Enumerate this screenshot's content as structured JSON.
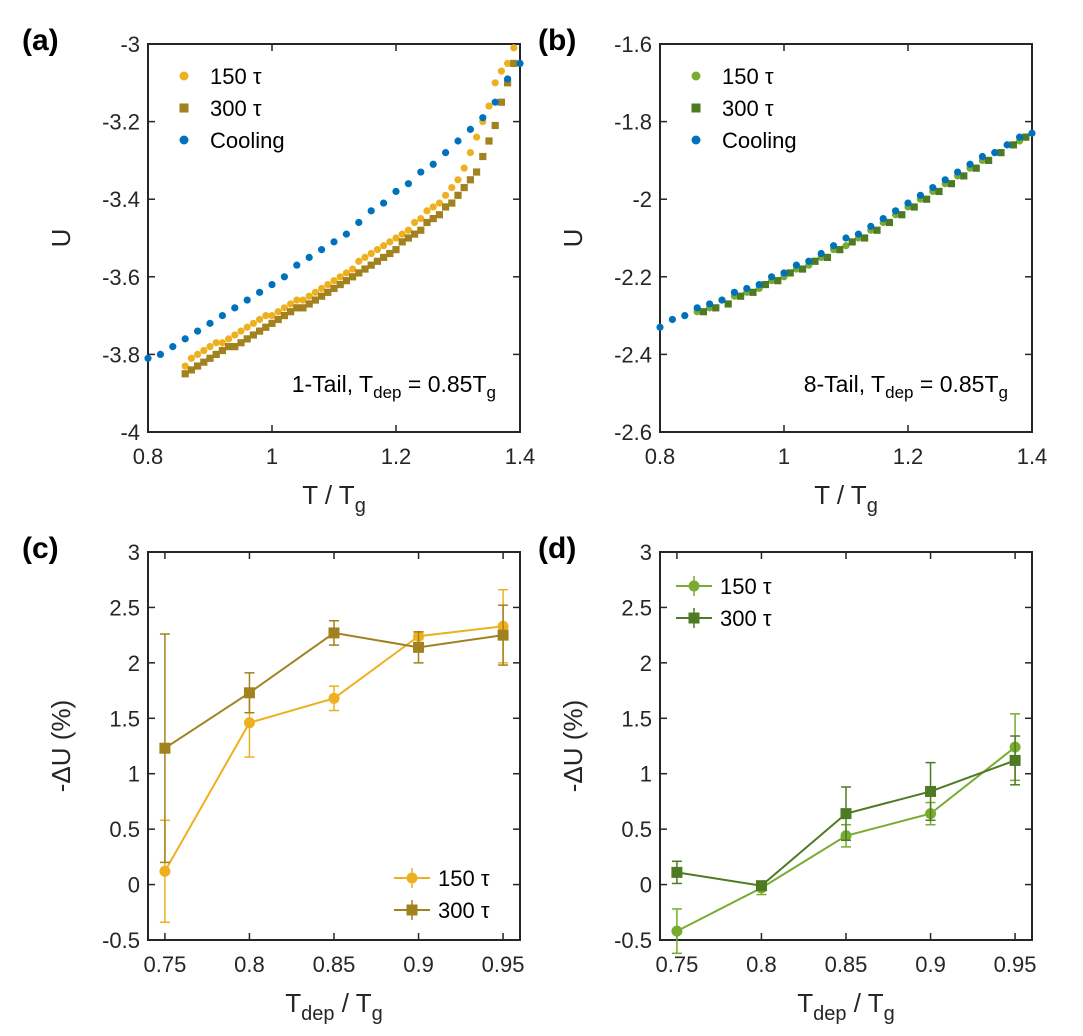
{
  "colors": {
    "gold": "#EDB120",
    "brown": "#A2811F",
    "blue": "#0072BD",
    "green_light": "#77AC30",
    "green_dark": "#4F7A24"
  },
  "chart_data": [
    {
      "panel": "(a)",
      "type": "scatter",
      "xlabel_main": "T / T",
      "xlabel_sub": "g",
      "ylabel": "U",
      "xlim": [
        0.8,
        1.4
      ],
      "ylim": [
        -4,
        -3
      ],
      "xticks": [
        "0.8",
        "1",
        "1.2",
        "1.4"
      ],
      "xtick_values": [
        0.8,
        1.0,
        1.2,
        1.4
      ],
      "yticks": [
        "-4",
        "-3.8",
        "-3.6",
        "-3.4",
        "-3.2",
        "-3"
      ],
      "ytick_values": [
        -4,
        -3.8,
        -3.6,
        -3.4,
        -3.2,
        -3
      ],
      "annotation": {
        "pre": "1-Tail, T",
        "sub1": "dep",
        "mid": " = 0.85T",
        "sub2": "g"
      },
      "legend": [
        "150 τ",
        "300 τ",
        "Cooling"
      ],
      "series": [
        {
          "name": "150 τ",
          "marker": "circle",
          "color": "#EDB120",
          "x": [
            0.86,
            0.87,
            0.88,
            0.89,
            0.9,
            0.91,
            0.92,
            0.93,
            0.94,
            0.95,
            0.96,
            0.97,
            0.98,
            0.99,
            1.0,
            1.01,
            1.02,
            1.03,
            1.04,
            1.05,
            1.06,
            1.07,
            1.08,
            1.09,
            1.1,
            1.11,
            1.12,
            1.13,
            1.14,
            1.15,
            1.16,
            1.17,
            1.18,
            1.19,
            1.2,
            1.21,
            1.22,
            1.23,
            1.24,
            1.25,
            1.26,
            1.27,
            1.28,
            1.29,
            1.3,
            1.31,
            1.32,
            1.33,
            1.34,
            1.35,
            1.36,
            1.37,
            1.38,
            1.39
          ],
          "y": [
            -3.83,
            -3.81,
            -3.8,
            -3.79,
            -3.78,
            -3.77,
            -3.77,
            -3.76,
            -3.75,
            -3.74,
            -3.73,
            -3.72,
            -3.71,
            -3.7,
            -3.7,
            -3.69,
            -3.68,
            -3.67,
            -3.66,
            -3.66,
            -3.65,
            -3.64,
            -3.63,
            -3.62,
            -3.61,
            -3.6,
            -3.59,
            -3.58,
            -3.56,
            -3.55,
            -3.54,
            -3.53,
            -3.52,
            -3.51,
            -3.5,
            -3.49,
            -3.48,
            -3.46,
            -3.45,
            -3.43,
            -3.42,
            -3.41,
            -3.39,
            -3.37,
            -3.35,
            -3.32,
            -3.28,
            -3.24,
            -3.2,
            -3.16,
            -3.1,
            -3.07,
            -3.05,
            -3.01
          ]
        },
        {
          "name": "300 τ",
          "marker": "square",
          "color": "#A2811F",
          "x": [
            0.86,
            0.87,
            0.88,
            0.89,
            0.9,
            0.91,
            0.92,
            0.93,
            0.94,
            0.95,
            0.96,
            0.97,
            0.98,
            0.99,
            1.0,
            1.01,
            1.02,
            1.03,
            1.04,
            1.05,
            1.06,
            1.07,
            1.08,
            1.09,
            1.1,
            1.11,
            1.12,
            1.13,
            1.14,
            1.15,
            1.16,
            1.17,
            1.18,
            1.19,
            1.2,
            1.21,
            1.22,
            1.23,
            1.24,
            1.25,
            1.26,
            1.27,
            1.28,
            1.29,
            1.3,
            1.31,
            1.32,
            1.33,
            1.34,
            1.35,
            1.36,
            1.37,
            1.38,
            1.39
          ],
          "y": [
            -3.85,
            -3.84,
            -3.83,
            -3.82,
            -3.81,
            -3.8,
            -3.79,
            -3.78,
            -3.78,
            -3.77,
            -3.76,
            -3.75,
            -3.74,
            -3.73,
            -3.72,
            -3.71,
            -3.7,
            -3.69,
            -3.68,
            -3.68,
            -3.67,
            -3.66,
            -3.65,
            -3.64,
            -3.63,
            -3.62,
            -3.61,
            -3.6,
            -3.59,
            -3.58,
            -3.57,
            -3.56,
            -3.55,
            -3.54,
            -3.53,
            -3.51,
            -3.5,
            -3.49,
            -3.48,
            -3.46,
            -3.45,
            -3.44,
            -3.42,
            -3.41,
            -3.39,
            -3.37,
            -3.35,
            -3.33,
            -3.29,
            -3.25,
            -3.21,
            -3.15,
            -3.1,
            -3.05
          ]
        },
        {
          "name": "Cooling",
          "marker": "circle",
          "color": "#0072BD",
          "x": [
            0.8,
            0.82,
            0.84,
            0.86,
            0.88,
            0.9,
            0.92,
            0.94,
            0.96,
            0.98,
            1.0,
            1.02,
            1.04,
            1.06,
            1.08,
            1.1,
            1.12,
            1.14,
            1.16,
            1.18,
            1.2,
            1.22,
            1.24,
            1.26,
            1.28,
            1.3,
            1.32,
            1.34,
            1.36,
            1.38,
            1.4
          ],
          "y": [
            -3.81,
            -3.8,
            -3.78,
            -3.76,
            -3.74,
            -3.72,
            -3.7,
            -3.68,
            -3.66,
            -3.64,
            -3.62,
            -3.6,
            -3.57,
            -3.55,
            -3.53,
            -3.51,
            -3.49,
            -3.46,
            -3.43,
            -3.41,
            -3.38,
            -3.36,
            -3.33,
            -3.31,
            -3.28,
            -3.25,
            -3.22,
            -3.19,
            -3.15,
            -3.09,
            -3.05
          ]
        }
      ]
    },
    {
      "panel": "(b)",
      "type": "scatter",
      "xlabel_main": "T / T",
      "xlabel_sub": "g",
      "ylabel": "U",
      "xlim": [
        0.8,
        1.4
      ],
      "ylim": [
        -2.6,
        -1.6
      ],
      "xticks": [
        "0.8",
        "1",
        "1.2",
        "1.4"
      ],
      "xtick_values": [
        0.8,
        1.0,
        1.2,
        1.4
      ],
      "yticks": [
        "-2.6",
        "-2.4",
        "-2.2",
        "-2",
        "-1.8",
        "-1.6"
      ],
      "ytick_values": [
        -2.6,
        -2.4,
        -2.2,
        -2.0,
        -1.8,
        -1.6
      ],
      "annotation": {
        "pre": "8-Tail, T",
        "sub1": "dep",
        "mid": " = 0.85T",
        "sub2": "g"
      },
      "legend": [
        "150 τ",
        "300 τ",
        "Cooling"
      ],
      "series": [
        {
          "name": "150 τ",
          "marker": "circle",
          "color": "#77AC30",
          "x": [
            0.86,
            0.88,
            0.9,
            0.92,
            0.94,
            0.96,
            0.98,
            1.0,
            1.02,
            1.04,
            1.06,
            1.08,
            1.1,
            1.12,
            1.14,
            1.16,
            1.18,
            1.2,
            1.22,
            1.24,
            1.26,
            1.28,
            1.3,
            1.32,
            1.34,
            1.36,
            1.38,
            1.39
          ],
          "y": [
            -2.29,
            -2.28,
            -2.26,
            -2.25,
            -2.24,
            -2.23,
            -2.21,
            -2.2,
            -2.18,
            -2.17,
            -2.15,
            -2.13,
            -2.12,
            -2.1,
            -2.08,
            -2.06,
            -2.04,
            -2.02,
            -2.0,
            -1.98,
            -1.96,
            -1.94,
            -1.92,
            -1.9,
            -1.88,
            -1.86,
            -1.85,
            -1.84
          ]
        },
        {
          "name": "300 τ",
          "marker": "square",
          "color": "#4F7A24",
          "x": [
            0.87,
            0.89,
            0.91,
            0.93,
            0.95,
            0.97,
            0.99,
            1.01,
            1.03,
            1.05,
            1.07,
            1.09,
            1.11,
            1.13,
            1.15,
            1.17,
            1.19,
            1.21,
            1.23,
            1.25,
            1.27,
            1.29,
            1.31,
            1.33,
            1.35,
            1.37,
            1.39
          ],
          "y": [
            -2.29,
            -2.28,
            -2.27,
            -2.25,
            -2.24,
            -2.22,
            -2.21,
            -2.19,
            -2.18,
            -2.16,
            -2.15,
            -2.13,
            -2.11,
            -2.1,
            -2.08,
            -2.06,
            -2.04,
            -2.02,
            -2.0,
            -1.98,
            -1.96,
            -1.94,
            -1.92,
            -1.9,
            -1.88,
            -1.86,
            -1.84
          ]
        },
        {
          "name": "Cooling",
          "marker": "circle",
          "color": "#0072BD",
          "x": [
            0.8,
            0.82,
            0.84,
            0.86,
            0.88,
            0.9,
            0.92,
            0.94,
            0.96,
            0.98,
            1.0,
            1.02,
            1.04,
            1.06,
            1.08,
            1.1,
            1.12,
            1.14,
            1.16,
            1.18,
            1.2,
            1.22,
            1.24,
            1.26,
            1.28,
            1.3,
            1.32,
            1.34,
            1.36,
            1.38,
            1.4
          ],
          "y": [
            -2.33,
            -2.31,
            -2.3,
            -2.28,
            -2.27,
            -2.26,
            -2.24,
            -2.23,
            -2.22,
            -2.2,
            -2.19,
            -2.17,
            -2.16,
            -2.14,
            -2.12,
            -2.1,
            -2.09,
            -2.07,
            -2.05,
            -2.03,
            -2.01,
            -1.99,
            -1.97,
            -1.95,
            -1.93,
            -1.91,
            -1.89,
            -1.88,
            -1.86,
            -1.84,
            -1.83
          ]
        }
      ]
    },
    {
      "panel": "(c)",
      "type": "line",
      "xlabel_main": "T",
      "xlabel_sub": "dep",
      "xlabel_mid": " / T",
      "xlabel_sub2": "g",
      "ylabel": "-ΔU (%)",
      "xlim": [
        0.74,
        0.96
      ],
      "ylim": [
        -0.5,
        3
      ],
      "xticks": [
        "0.75",
        "0.8",
        "0.85",
        "0.9",
        "0.95"
      ],
      "xtick_values": [
        0.75,
        0.8,
        0.85,
        0.9,
        0.95
      ],
      "yticks": [
        "-0.5",
        "0",
        "0.5",
        "1",
        "1.5",
        "2",
        "2.5",
        "3"
      ],
      "ytick_values": [
        -0.5,
        0,
        0.5,
        1,
        1.5,
        2,
        2.5,
        3
      ],
      "legend": [
        "150 τ",
        "300 τ"
      ],
      "legend_position": "bottom-right",
      "series": [
        {
          "name": "150 τ",
          "marker": "circle",
          "color": "#EDB120",
          "x": [
            0.75,
            0.8,
            0.85,
            0.9,
            0.95
          ],
          "y": [
            0.12,
            1.46,
            1.68,
            2.24,
            2.33
          ],
          "err": [
            0.46,
            0.31,
            0.11,
            0.03,
            0.33
          ]
        },
        {
          "name": "300 τ",
          "marker": "square",
          "color": "#A2811F",
          "x": [
            0.75,
            0.8,
            0.85,
            0.9,
            0.95
          ],
          "y": [
            1.23,
            1.73,
            2.27,
            2.14,
            2.25
          ],
          "err": [
            1.03,
            0.18,
            0.11,
            0.14,
            0.27
          ]
        }
      ]
    },
    {
      "panel": "(d)",
      "type": "line",
      "xlabel_main": "T",
      "xlabel_sub": "dep",
      "xlabel_mid": " / T",
      "xlabel_sub2": "g",
      "ylabel": "-ΔU (%)",
      "xlim": [
        0.74,
        0.96
      ],
      "ylim": [
        -0.5,
        3
      ],
      "xticks": [
        "0.75",
        "0.8",
        "0.85",
        "0.9",
        "0.95"
      ],
      "xtick_values": [
        0.75,
        0.8,
        0.85,
        0.9,
        0.95
      ],
      "yticks": [
        "-0.5",
        "0",
        "0.5",
        "1",
        "1.5",
        "2",
        "2.5",
        "3"
      ],
      "ytick_values": [
        -0.5,
        0,
        0.5,
        1,
        1.5,
        2,
        2.5,
        3
      ],
      "legend": [
        "150 τ",
        "300 τ"
      ],
      "legend_position": "top-left",
      "series": [
        {
          "name": "150 τ",
          "marker": "circle",
          "color": "#77AC30",
          "x": [
            0.75,
            0.8,
            0.85,
            0.9,
            0.95
          ],
          "y": [
            -0.42,
            -0.03,
            0.44,
            0.64,
            1.24
          ],
          "err": [
            0.2,
            0.06,
            0.1,
            0.1,
            0.3
          ]
        },
        {
          "name": "300 τ",
          "marker": "square",
          "color": "#4F7A24",
          "x": [
            0.75,
            0.8,
            0.85,
            0.9,
            0.95
          ],
          "y": [
            0.11,
            -0.01,
            0.64,
            0.84,
            1.12
          ],
          "err": [
            0.1,
            0.04,
            0.24,
            0.26,
            0.22
          ]
        }
      ]
    }
  ]
}
